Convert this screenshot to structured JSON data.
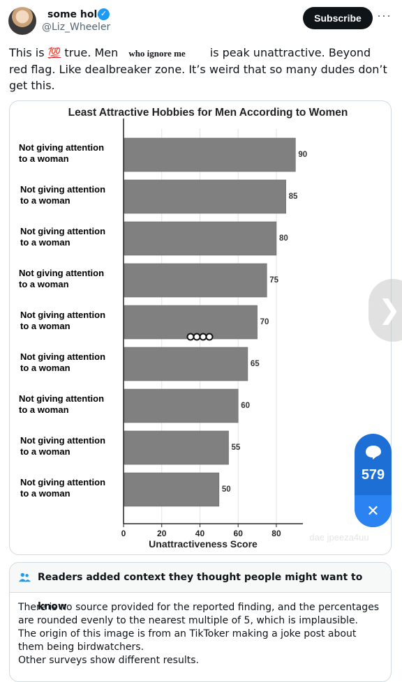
{
  "post": {
    "author_name": "some hole",
    "handle": "@Liz_Wheeler",
    "subscribe_label": "Subscribe",
    "more_label": "···",
    "text_part1": "This is ",
    "emoji_label": "💯",
    "text_part2": " true. Men ",
    "redacted_overlay": "who ignore me",
    "text_part3": " is peak unattractive. Beyond red flag. Like dealbreaker zone. It’s weird that so many dudes don’t get this."
  },
  "chart_data": {
    "type": "bar",
    "orientation": "horizontal",
    "title": "Least Attractive Hobbies for Men According to Women",
    "xlabel": "Unattractiveness Score",
    "categories": [
      "Not giving attention to a woman",
      "Not giving attention to a woman",
      "Not giving attention to a woman",
      "Not giving attention to a woman",
      "Not giving attention to a woman",
      "Not giving attention to a woman",
      "Not giving attention to a woman",
      "Not giving attention to a woman",
      "Not giving attention to a woman"
    ],
    "category_line1": "Not giving attention",
    "category_line2": "to a woman",
    "values": [
      90,
      85,
      80,
      75,
      70,
      65,
      60,
      55,
      50
    ],
    "xlim": [
      0,
      95
    ],
    "xticks": [
      "0",
      "20",
      "40",
      "60",
      "80"
    ],
    "bar_color": "#808080",
    "grid": true,
    "watermark": "dae jpeeza4uu"
  },
  "context_note": {
    "header": "Readers added context they thought people might want to know",
    "lines": [
      "There is no source provided for the reported finding, and the percentages are rounded evenly to the nearest multiple of 5, which is implausible.",
      "The origin of this image is from an TikToker making a joke post about them being birdwatchers.",
      "Other surveys show different results."
    ]
  },
  "reply_count": "579",
  "colors": {
    "accent": "#1d9bf0",
    "badge": "#1d6fd6"
  }
}
